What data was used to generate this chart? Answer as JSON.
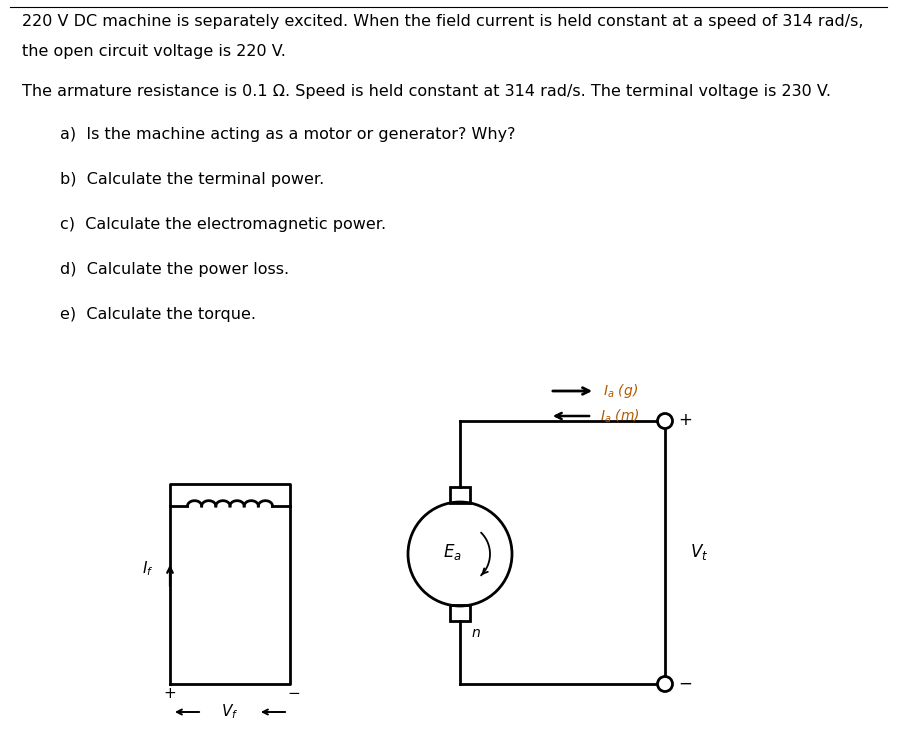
{
  "bg_color": "#ffffff",
  "text_color": "#000000",
  "orange_color": "#b35900",
  "line1": "220 V DC machine is separately excited. When the field current is held constant at a speed of 314 rad/s,",
  "line2": "the open circuit voltage is 220 V.",
  "line3": "The armature resistance is 0.1 Ω. Speed is held constant at 314 rad/s. The terminal voltage is 230 V.",
  "qa": "a)  Is the machine acting as a motor or generator? Why?",
  "qb": "b)  Calculate the terminal power.",
  "qc": "c)  Calculate the electromagnetic power.",
  "qd": "d)  Calculate the power loss.",
  "qe": "e)  Calculate the torque.",
  "fontsize_text": 11.5,
  "fontsize_labels": 11
}
